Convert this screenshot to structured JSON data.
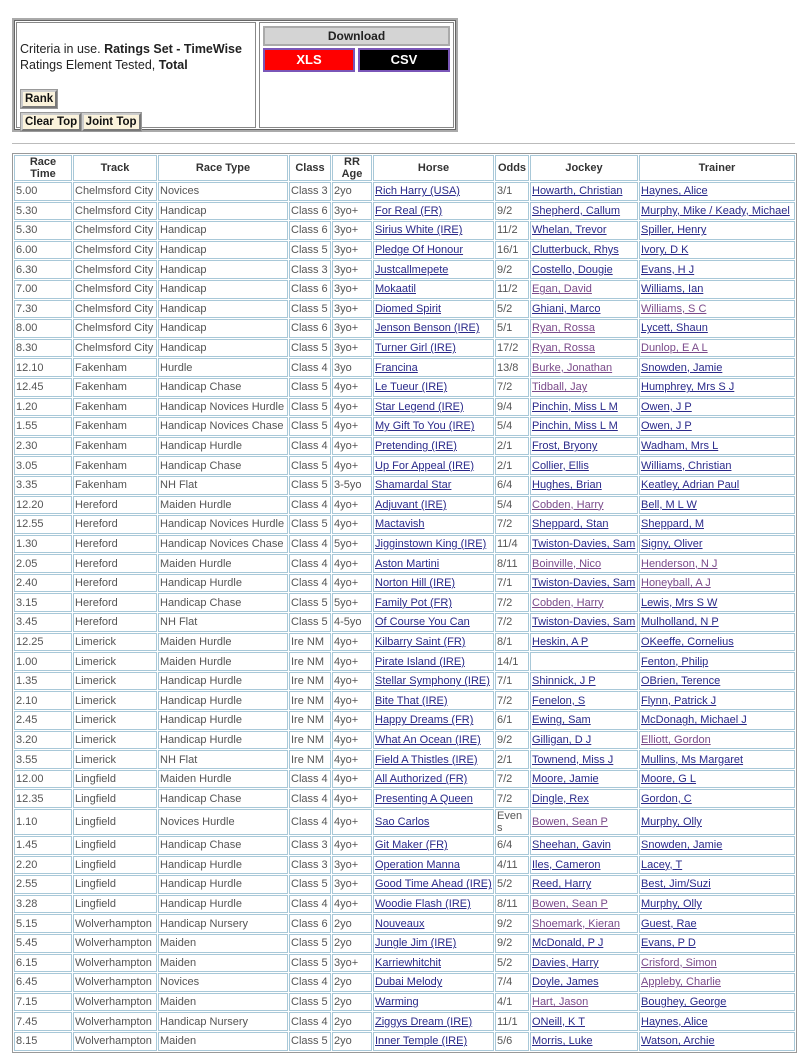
{
  "criteria": {
    "prefix": "Criteria in use. ",
    "ratings_set": "Ratings Set - TimeWise",
    "element_label": "Ratings Element Tested, ",
    "element": "Total"
  },
  "buttons": {
    "rank": "Rank",
    "clear_top": "Clear Top",
    "joint_top": "Joint Top"
  },
  "download": {
    "title": "Download",
    "xls": "XLS",
    "csv": "CSV",
    "xls_color": "#ff0000",
    "csv_color": "#000000"
  },
  "table": {
    "headers": [
      "Race Time",
      "Track",
      "Race Type",
      "Class",
      "RR Age",
      "Horse",
      "Odds",
      "Jockey",
      "Trainer"
    ],
    "rows": [
      [
        "5.00",
        "Chelmsford City",
        "Novices",
        "Class 3",
        "2yo",
        "Rich Harry (USA)",
        "3/1",
        "Howarth, Christian",
        "Haynes, Alice",
        0,
        0
      ],
      [
        "5.30",
        "Chelmsford City",
        "Handicap",
        "Class 6",
        "3yo+",
        "For Real (FR)",
        "9/2",
        "Shepherd, Callum",
        "Murphy, Mike / Keady, Michael",
        0,
        0
      ],
      [
        "5.30",
        "Chelmsford City",
        "Handicap",
        "Class 6",
        "3yo+",
        "Sirius White (IRE)",
        "11/2",
        "Whelan, Trevor",
        "Spiller, Henry",
        0,
        0
      ],
      [
        "6.00",
        "Chelmsford City",
        "Handicap",
        "Class 5",
        "3yo+",
        "Pledge Of Honour",
        "16/1",
        "Clutterbuck, Rhys",
        "Ivory, D K",
        0,
        0
      ],
      [
        "6.30",
        "Chelmsford City",
        "Handicap",
        "Class 3",
        "3yo+",
        "Justcallmepete",
        "9/2",
        "Costello, Dougie",
        "Evans, H J",
        0,
        0
      ],
      [
        "7.00",
        "Chelmsford City",
        "Handicap",
        "Class 6",
        "3yo+",
        "Mokaatil",
        "11/2",
        "Egan, David",
        "Williams, Ian",
        1,
        0
      ],
      [
        "7.30",
        "Chelmsford City",
        "Handicap",
        "Class 5",
        "3yo+",
        "Diomed Spirit",
        "5/2",
        "Ghiani, Marco",
        "Williams, S C",
        0,
        1
      ],
      [
        "8.00",
        "Chelmsford City",
        "Handicap",
        "Class 6",
        "3yo+",
        "Jenson Benson (IRE)",
        "5/1",
        "Ryan, Rossa",
        "Lycett, Shaun",
        1,
        0
      ],
      [
        "8.30",
        "Chelmsford City",
        "Handicap",
        "Class 5",
        "3yo+",
        "Turner Girl (IRE)",
        "17/2",
        "Ryan, Rossa",
        "Dunlop, E A L",
        1,
        1
      ],
      [
        "12.10",
        "Fakenham",
        "Hurdle",
        "Class 4",
        "3yo",
        "Francina",
        "13/8",
        "Burke, Jonathan",
        "Snowden, Jamie",
        1,
        0
      ],
      [
        "12.45",
        "Fakenham",
        "Handicap Chase",
        "Class 5",
        "4yo+",
        "Le Tueur (IRE)",
        "7/2",
        "Tidball, Jay",
        "Humphrey, Mrs S J",
        1,
        0
      ],
      [
        "1.20",
        "Fakenham",
        "Handicap Novices Hurdle",
        "Class 5",
        "4yo+",
        "Star Legend (IRE)",
        "9/4",
        "Pinchin, Miss L M",
        "Owen, J P",
        0,
        0
      ],
      [
        "1.55",
        "Fakenham",
        "Handicap Novices Chase",
        "Class 5",
        "4yo+",
        "My Gift To You (IRE)",
        "5/4",
        "Pinchin, Miss L M",
        "Owen, J P",
        0,
        0
      ],
      [
        "2.30",
        "Fakenham",
        "Handicap Hurdle",
        "Class 4",
        "4yo+",
        "Pretending (IRE)",
        "2/1",
        "Frost, Bryony",
        "Wadham, Mrs L",
        0,
        0
      ],
      [
        "3.05",
        "Fakenham",
        "Handicap Chase",
        "Class 5",
        "4yo+",
        "Up For Appeal (IRE)",
        "2/1",
        "Collier, Ellis",
        "Williams, Christian",
        0,
        0
      ],
      [
        "3.35",
        "Fakenham",
        "NH Flat",
        "Class 5",
        "3-5yo",
        "Shamardal Star",
        "6/4",
        "Hughes, Brian",
        "Keatley, Adrian Paul",
        0,
        0
      ],
      [
        "12.20",
        "Hereford",
        "Maiden Hurdle",
        "Class 4",
        "4yo+",
        "Adjuvant (IRE)",
        "5/4",
        "Cobden, Harry",
        "Bell, M L W",
        1,
        0
      ],
      [
        "12.55",
        "Hereford",
        "Handicap Novices Hurdle",
        "Class 5",
        "4yo+",
        "Mactavish",
        "7/2",
        "Sheppard, Stan",
        "Sheppard, M",
        0,
        0
      ],
      [
        "1.30",
        "Hereford",
        "Handicap Novices Chase",
        "Class 4",
        "5yo+",
        "Jigginstown King (IRE)",
        "11/4",
        "Twiston-Davies, Sam",
        "Signy, Oliver",
        0,
        0
      ],
      [
        "2.05",
        "Hereford",
        "Maiden Hurdle",
        "Class 4",
        "4yo+",
        "Aston Martini",
        "8/11",
        "Boinville, Nico",
        "Henderson, N J",
        1,
        1
      ],
      [
        "2.40",
        "Hereford",
        "Handicap Hurdle",
        "Class 4",
        "4yo+",
        "Norton Hill (IRE)",
        "7/1",
        "Twiston-Davies, Sam",
        "Honeyball, A J",
        0,
        1
      ],
      [
        "3.15",
        "Hereford",
        "Handicap Chase",
        "Class 5",
        "5yo+",
        "Family Pot (FR)",
        "7/2",
        "Cobden, Harry",
        "Lewis, Mrs S W",
        1,
        0
      ],
      [
        "3.45",
        "Hereford",
        "NH Flat",
        "Class 5",
        "4-5yo",
        "Of Course You Can",
        "7/2",
        "Twiston-Davies, Sam",
        "Mulholland, N P",
        0,
        0
      ],
      [
        "12.25",
        "Limerick",
        "Maiden Hurdle",
        "Ire NM",
        "4yo+",
        "Kilbarry Saint (FR)",
        "8/1",
        "Heskin, A P",
        "OKeeffe, Cornelius",
        0,
        0
      ],
      [
        "1.00",
        "Limerick",
        "Maiden Hurdle",
        "Ire NM",
        "4yo+",
        "Pirate Island (IRE)",
        "14/1",
        "",
        "Fenton, Philip",
        0,
        0
      ],
      [
        "1.35",
        "Limerick",
        "Handicap Hurdle",
        "Ire NM",
        "4yo+",
        "Stellar Symphony (IRE)",
        "7/1",
        "Shinnick, J P",
        "OBrien, Terence",
        0,
        0
      ],
      [
        "2.10",
        "Limerick",
        "Handicap Hurdle",
        "Ire NM",
        "4yo+",
        "Bite That (IRE)",
        "7/2",
        "Fenelon, S",
        "Flynn, Patrick J",
        0,
        0
      ],
      [
        "2.45",
        "Limerick",
        "Handicap Hurdle",
        "Ire NM",
        "4yo+",
        "Happy Dreams (FR)",
        "6/1",
        "Ewing, Sam",
        "McDonagh, Michael J",
        0,
        0
      ],
      [
        "3.20",
        "Limerick",
        "Handicap Hurdle",
        "Ire NM",
        "4yo+",
        "What An Ocean (IRE)",
        "9/2",
        "Gilligan, D J",
        "Elliott, Gordon",
        0,
        1
      ],
      [
        "3.55",
        "Limerick",
        "NH Flat",
        "Ire NM",
        "4yo+",
        "Field A Thistles (IRE)",
        "2/1",
        "Townend, Miss J",
        "Mullins, Ms Margaret",
        0,
        0
      ],
      [
        "12.00",
        "Lingfield",
        "Maiden Hurdle",
        "Class 4",
        "4yo+",
        "All Authorized (FR)",
        "7/2",
        "Moore, Jamie",
        "Moore, G L",
        0,
        0
      ],
      [
        "12.35",
        "Lingfield",
        "Handicap Chase",
        "Class 4",
        "4yo+",
        "Presenting A Queen",
        "7/2",
        "Dingle, Rex",
        "Gordon, C",
        0,
        0
      ],
      [
        "1.10",
        "Lingfield",
        "Novices Hurdle",
        "Class 4",
        "4yo+",
        "Sao Carlos",
        "Evens",
        "Bowen, Sean P",
        "Murphy, Olly",
        1,
        0
      ],
      [
        "1.45",
        "Lingfield",
        "Handicap Chase",
        "Class 3",
        "4yo+",
        "Git Maker (FR)",
        "6/4",
        "Sheehan, Gavin",
        "Snowden, Jamie",
        0,
        0
      ],
      [
        "2.20",
        "Lingfield",
        "Handicap Hurdle",
        "Class 3",
        "3yo+",
        "Operation Manna",
        "4/11",
        "Iles, Cameron",
        "Lacey, T",
        0,
        0
      ],
      [
        "2.55",
        "Lingfield",
        "Handicap Hurdle",
        "Class 5",
        "3yo+",
        "Good Time Ahead (IRE)",
        "5/2",
        "Reed, Harry",
        "Best, Jim/Suzi",
        0,
        0
      ],
      [
        "3.28",
        "Lingfield",
        "Handicap Hurdle",
        "Class 4",
        "4yo+",
        "Woodie Flash (IRE)",
        "8/11",
        "Bowen, Sean P",
        "Murphy, Olly",
        1,
        0
      ],
      [
        "5.15",
        "Wolverhampton",
        "Handicap Nursery",
        "Class 6",
        "2yo",
        "Nouveaux",
        "9/2",
        "Shoemark, Kieran",
        "Guest, Rae",
        1,
        0
      ],
      [
        "5.45",
        "Wolverhampton",
        "Maiden",
        "Class 5",
        "2yo",
        "Jungle Jim (IRE)",
        "9/2",
        "McDonald, P J",
        "Evans, P D",
        0,
        0
      ],
      [
        "6.15",
        "Wolverhampton",
        "Maiden",
        "Class 5",
        "3yo+",
        "Karriewhitchit",
        "5/2",
        "Davies, Harry",
        "Crisford, Simon",
        0,
        1
      ],
      [
        "6.45",
        "Wolverhampton",
        "Novices",
        "Class 4",
        "2yo",
        "Dubai Melody",
        "7/4",
        "Doyle, James",
        "Appleby, Charlie",
        0,
        1
      ],
      [
        "7.15",
        "Wolverhampton",
        "Maiden",
        "Class 5",
        "2yo",
        "Warming",
        "4/1",
        "Hart, Jason",
        "Boughey, George",
        1,
        0
      ],
      [
        "7.45",
        "Wolverhampton",
        "Handicap Nursery",
        "Class 4",
        "2yo",
        "Ziggys Dream (IRE)",
        "11/1",
        "ONeill, K T",
        "Haynes, Alice",
        0,
        0
      ],
      [
        "8.15",
        "Wolverhampton",
        "Maiden",
        "Class 5",
        "2yo",
        "Inner Temple (IRE)",
        "5/6",
        "Morris, Luke",
        "Watson, Archie",
        0,
        0
      ]
    ]
  }
}
